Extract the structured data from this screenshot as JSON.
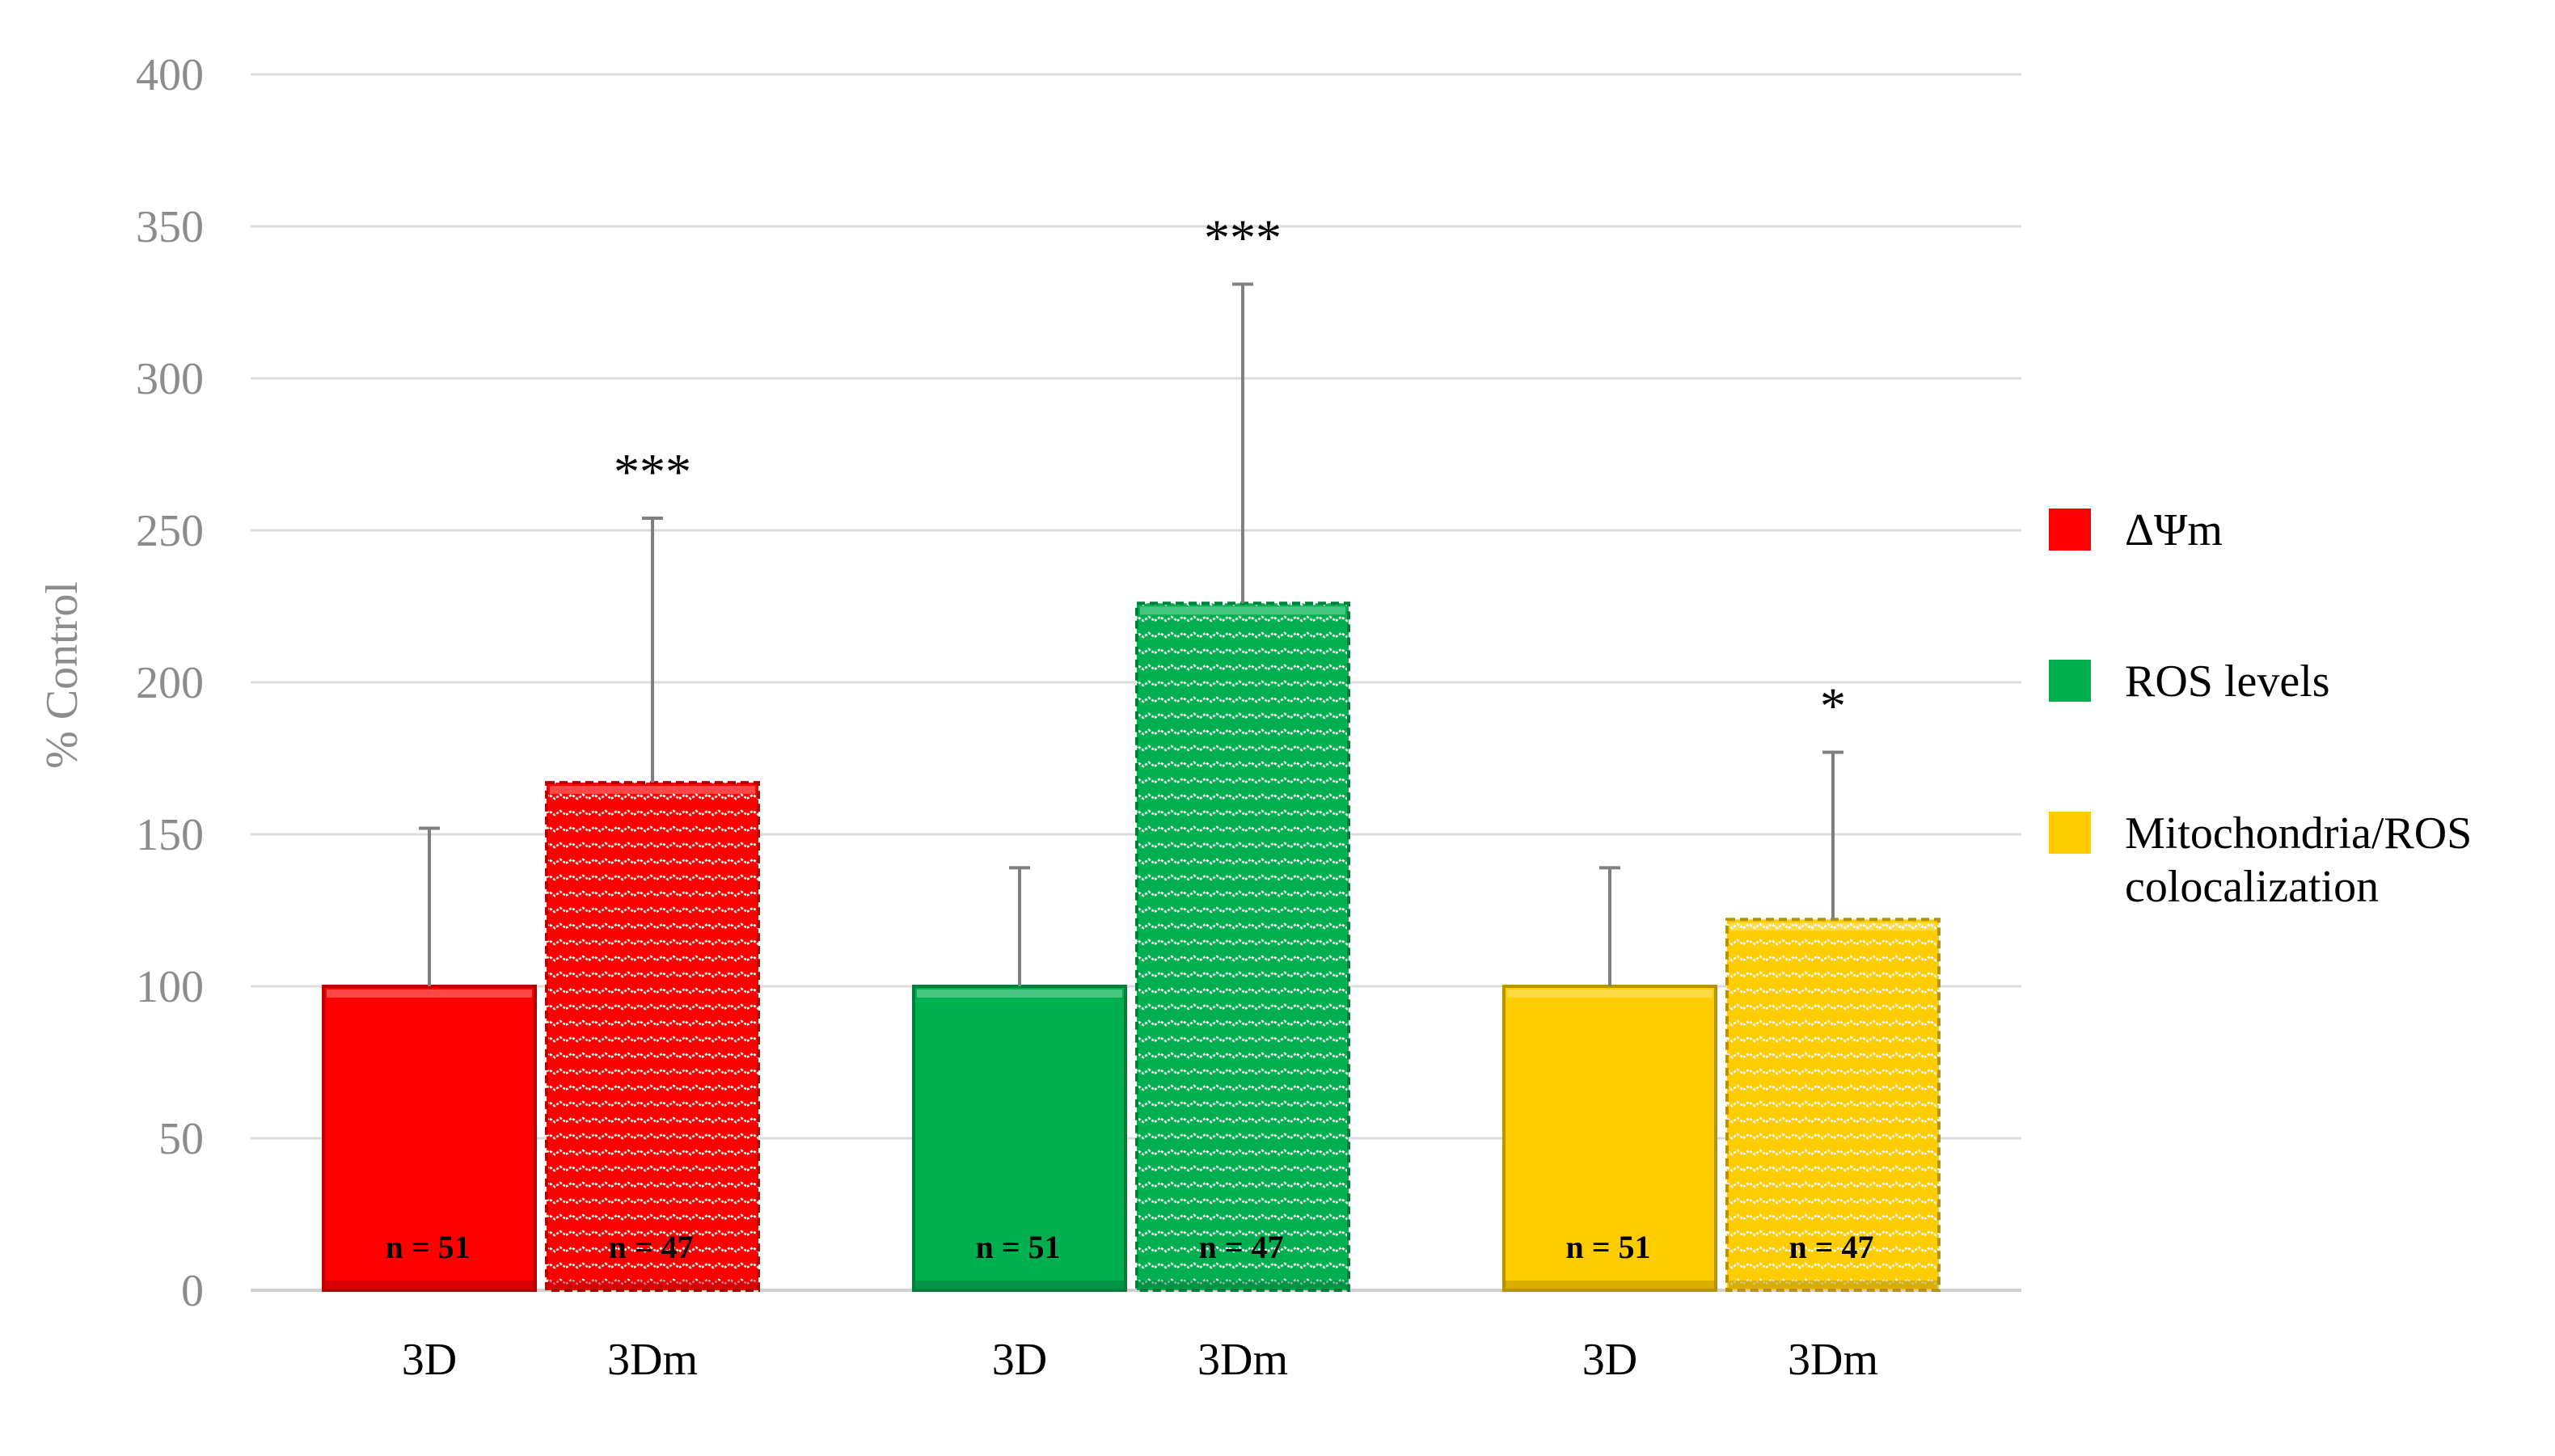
{
  "chart_data": {
    "type": "bar",
    "ylabel": "% Control",
    "ylim": [
      0,
      400
    ],
    "yticks": [
      0,
      50,
      100,
      150,
      200,
      250,
      300,
      350,
      400
    ],
    "grid": true,
    "legend_position": "right",
    "groups": [
      {
        "name": "ΔΨm",
        "color": "#ff0000",
        "bars": [
          {
            "category": "3D",
            "value": 100,
            "error": 52,
            "n_label": "n = 51",
            "sig": "",
            "pattern": "solid"
          },
          {
            "category": "3Dm",
            "value": 167,
            "error": 87,
            "n_label": "n = 47",
            "sig": "***",
            "pattern": "wave"
          }
        ]
      },
      {
        "name": "ROS levels",
        "color": "#00b050",
        "bars": [
          {
            "category": "3D",
            "value": 100,
            "error": 39,
            "n_label": "n = 51",
            "sig": "",
            "pattern": "solid"
          },
          {
            "category": "3Dm",
            "value": 226,
            "error": 105,
            "n_label": "n = 47",
            "sig": "***",
            "pattern": "wave"
          }
        ]
      },
      {
        "name": "Mitochondria/ROS colocalization",
        "legend_lines": [
          "Mitochondria/ROS",
          "colocalization"
        ],
        "color": "#ffcc00",
        "bars": [
          {
            "category": "3D",
            "value": 100,
            "error": 39,
            "n_label": "n = 51",
            "sig": "",
            "pattern": "solid"
          },
          {
            "category": "3Dm",
            "value": 122,
            "error": 55,
            "n_label": "n = 47",
            "sig": "*",
            "pattern": "wave"
          }
        ]
      }
    ]
  }
}
